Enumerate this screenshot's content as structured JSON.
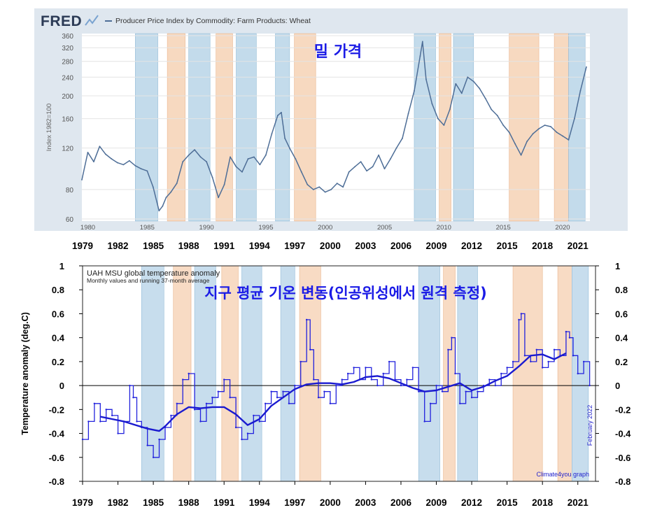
{
  "chart_data": [
    {
      "type": "line",
      "name": "fred-wheat",
      "brand": "FRED",
      "title": "Producer Price Index by Commodity: Farm Products: Wheat",
      "overlay_title": "밀 가격",
      "ylabel": "Index 1982=100",
      "yscale": "log",
      "ylim": [
        60,
        360
      ],
      "xlim": [
        1979.5,
        2022.3
      ],
      "y_ticks": [
        "360",
        "320",
        "280",
        "240",
        "200",
        "160",
        "120",
        "80",
        "60"
      ],
      "x_ticks": [
        "1980",
        "1985",
        "1990",
        "1995",
        "2000",
        "2005",
        "2010",
        "2015",
        "2020"
      ],
      "series": [
        {
          "name": "Wheat PPI",
          "x": [
            1979.5,
            1980.0,
            1980.5,
            1981.0,
            1981.5,
            1982.0,
            1982.5,
            1983.0,
            1983.5,
            1984.0,
            1984.5,
            1985.0,
            1985.5,
            1986.0,
            1986.3,
            1986.6,
            1987.0,
            1987.5,
            1988.0,
            1988.5,
            1989.0,
            1989.5,
            1990.0,
            1990.5,
            1991.0,
            1991.5,
            1992.0,
            1992.5,
            1993.0,
            1993.5,
            1994.0,
            1994.5,
            1995.0,
            1995.5,
            1996.0,
            1996.3,
            1996.6,
            1997.0,
            1997.5,
            1998.0,
            1998.5,
            1999.0,
            1999.5,
            2000.0,
            2000.5,
            2001.0,
            2001.5,
            2002.0,
            2002.5,
            2003.0,
            2003.5,
            2004.0,
            2004.5,
            2005.0,
            2005.5,
            2006.0,
            2006.5,
            2007.0,
            2007.5,
            2008.0,
            2008.2,
            2008.5,
            2009.0,
            2009.5,
            2010.0,
            2010.5,
            2011.0,
            2011.5,
            2012.0,
            2012.5,
            2013.0,
            2013.5,
            2014.0,
            2014.5,
            2015.0,
            2015.5,
            2016.0,
            2016.5,
            2017.0,
            2017.5,
            2018.0,
            2018.5,
            2019.0,
            2019.5,
            2020.0,
            2020.5,
            2021.0,
            2021.5,
            2022.0
          ],
          "values": [
            88,
            115,
            105,
            122,
            113,
            108,
            104,
            102,
            106,
            101,
            98,
            96,
            82,
            65,
            68,
            74,
            78,
            85,
            105,
            112,
            118,
            110,
            105,
            90,
            74,
            84,
            110,
            100,
            95,
            108,
            110,
            102,
            112,
            138,
            165,
            170,
            132,
            120,
            108,
            95,
            84,
            80,
            82,
            78,
            80,
            85,
            82,
            95,
            100,
            105,
            96,
            100,
            112,
            98,
            108,
            120,
            132,
            168,
            210,
            295,
            340,
            235,
            185,
            160,
            150,
            175,
            225,
            205,
            240,
            230,
            215,
            195,
            175,
            165,
            150,
            140,
            125,
            112,
            128,
            138,
            145,
            150,
            148,
            140,
            135,
            130,
            160,
            210,
            265
          ]
        }
      ],
      "shade_ranges": [
        {
          "from": 1984.0,
          "to": 1985.9,
          "kind": "la-nina"
        },
        {
          "from": 1986.7,
          "to": 1988.2,
          "kind": "el-nino"
        },
        {
          "from": 1988.5,
          "to": 1990.3,
          "kind": "la-nina"
        },
        {
          "from": 1990.8,
          "to": 1992.2,
          "kind": "el-nino"
        },
        {
          "from": 1992.5,
          "to": 1994.2,
          "kind": "la-nina"
        },
        {
          "from": 1995.8,
          "to": 1997.0,
          "kind": "la-nina"
        },
        {
          "from": 1997.4,
          "to": 1999.2,
          "kind": "el-nino"
        },
        {
          "from": 2007.5,
          "to": 2009.3,
          "kind": "la-nina"
        },
        {
          "from": 2009.6,
          "to": 2010.6,
          "kind": "el-nino"
        },
        {
          "from": 2010.8,
          "to": 2012.5,
          "kind": "la-nina"
        },
        {
          "from": 2015.5,
          "to": 2018.0,
          "kind": "el-nino"
        },
        {
          "from": 2019.3,
          "to": 2020.5,
          "kind": "el-nino"
        },
        {
          "from": 2020.5,
          "to": 2021.9,
          "kind": "la-nina"
        }
      ]
    },
    {
      "type": "line",
      "name": "uah-temperature",
      "title": "UAH MSU global temperature anomaly",
      "subtitle": "Monthly values and running 37-month average",
      "overlay_title": "지구 평균 기온 변동(인공위성에서 원격 측정)",
      "ylabel": "Temperature anomaly (deg.C)",
      "right_note": "February 2022",
      "credit": "Climate4you graph",
      "ylim": [
        -0.8,
        1.0
      ],
      "xlim": [
        1979.0,
        2022.5
      ],
      "y_ticks": [
        "1",
        "0.8",
        "0.6",
        "0.4",
        "0.2",
        "0",
        "-0.2",
        "-0.4",
        "-0.6",
        "-0.8"
      ],
      "x_ticks": [
        "1979",
        "1982",
        "1985",
        "1988",
        "1991",
        "1994",
        "1997",
        "2000",
        "2003",
        "2006",
        "2009",
        "2012",
        "2015",
        "2018",
        "2021"
      ],
      "series": [
        {
          "name": "Monthly anomaly",
          "x": [
            1979.0,
            1979.5,
            1980.0,
            1980.5,
            1981.0,
            1981.5,
            1982.0,
            1982.5,
            1983.0,
            1983.3,
            1983.6,
            1984.0,
            1984.5,
            1985.0,
            1985.5,
            1986.0,
            1986.5,
            1987.0,
            1987.5,
            1988.0,
            1988.5,
            1989.0,
            1989.5,
            1990.0,
            1990.5,
            1991.0,
            1991.5,
            1992.0,
            1992.5,
            1993.0,
            1993.5,
            1994.0,
            1994.5,
            1995.0,
            1995.5,
            1996.0,
            1996.5,
            1997.0,
            1997.5,
            1998.0,
            1998.3,
            1998.6,
            1999.0,
            1999.5,
            2000.0,
            2000.5,
            2001.0,
            2001.5,
            2002.0,
            2002.5,
            2003.0,
            2003.5,
            2004.0,
            2004.5,
            2005.0,
            2005.5,
            2006.0,
            2006.5,
            2007.0,
            2007.5,
            2008.0,
            2008.5,
            2009.0,
            2009.5,
            2010.0,
            2010.3,
            2010.6,
            2011.0,
            2011.5,
            2012.0,
            2012.5,
            2013.0,
            2013.5,
            2014.0,
            2014.5,
            2015.0,
            2015.5,
            2016.0,
            2016.2,
            2016.5,
            2017.0,
            2017.5,
            2018.0,
            2018.5,
            2019.0,
            2019.5,
            2020.0,
            2020.3,
            2020.6,
            2021.0,
            2021.5,
            2022.0
          ],
          "values": [
            -0.45,
            -0.3,
            -0.15,
            -0.3,
            -0.2,
            -0.25,
            -0.4,
            -0.3,
            0.0,
            -0.1,
            -0.3,
            -0.35,
            -0.5,
            -0.6,
            -0.45,
            -0.35,
            -0.25,
            -0.15,
            0.05,
            0.1,
            -0.2,
            -0.3,
            -0.15,
            -0.1,
            -0.05,
            0.05,
            -0.1,
            -0.35,
            -0.45,
            -0.4,
            -0.25,
            -0.3,
            -0.15,
            -0.05,
            -0.1,
            -0.05,
            -0.15,
            0.0,
            0.2,
            0.55,
            0.3,
            0.05,
            -0.1,
            -0.05,
            -0.15,
            0.0,
            0.05,
            0.1,
            0.15,
            0.05,
            0.15,
            0.05,
            0.0,
            0.1,
            0.2,
            0.05,
            0.0,
            0.05,
            0.15,
            -0.05,
            -0.3,
            -0.15,
            0.0,
            -0.05,
            0.3,
            0.4,
            0.1,
            -0.15,
            -0.05,
            -0.1,
            -0.05,
            0.0,
            0.05,
            0.0,
            0.1,
            0.15,
            0.2,
            0.55,
            0.6,
            0.25,
            0.2,
            0.3,
            0.15,
            0.2,
            0.3,
            0.25,
            0.45,
            0.4,
            0.25,
            0.1,
            0.2,
            0.0
          ]
        },
        {
          "name": "Running 37-month average",
          "x": [
            1980.5,
            1981.5,
            1982.5,
            1983.5,
            1984.5,
            1985.5,
            1986.0,
            1987.0,
            1988.0,
            1989.0,
            1990.0,
            1991.0,
            1992.0,
            1993.0,
            1994.0,
            1995.0,
            1996.0,
            1997.0,
            1998.0,
            1999.0,
            2000.0,
            2001.0,
            2002.0,
            2003.0,
            2004.0,
            2005.0,
            2006.0,
            2007.0,
            2008.0,
            2009.0,
            2010.0,
            2011.0,
            2012.0,
            2013.0,
            2014.0,
            2015.0,
            2016.0,
            2017.0,
            2018.0,
            2019.0,
            2020.0
          ],
          "values": [
            -0.26,
            -0.28,
            -0.3,
            -0.33,
            -0.36,
            -0.38,
            -0.34,
            -0.24,
            -0.18,
            -0.19,
            -0.18,
            -0.18,
            -0.24,
            -0.33,
            -0.28,
            -0.17,
            -0.1,
            -0.03,
            0.01,
            0.02,
            0.02,
            0.01,
            0.03,
            0.07,
            0.08,
            0.06,
            0.02,
            -0.02,
            -0.05,
            -0.04,
            -0.01,
            0.02,
            -0.04,
            -0.01,
            0.04,
            0.08,
            0.16,
            0.25,
            0.26,
            0.22,
            0.27
          ]
        }
      ],
      "shade_ranges": [
        {
          "from": 1984.0,
          "to": 1985.9,
          "kind": "la-nina"
        },
        {
          "from": 1986.7,
          "to": 1988.2,
          "kind": "el-nino"
        },
        {
          "from": 1988.5,
          "to": 1990.3,
          "kind": "la-nina"
        },
        {
          "from": 1990.8,
          "to": 1992.2,
          "kind": "el-nino"
        },
        {
          "from": 1992.5,
          "to": 1994.2,
          "kind": "la-nina"
        },
        {
          "from": 1995.8,
          "to": 1997.0,
          "kind": "la-nina"
        },
        {
          "from": 1997.4,
          "to": 1999.2,
          "kind": "el-nino"
        },
        {
          "from": 2007.5,
          "to": 2009.3,
          "kind": "la-nina"
        },
        {
          "from": 2009.6,
          "to": 2010.6,
          "kind": "el-nino"
        },
        {
          "from": 2010.8,
          "to": 2012.5,
          "kind": "la-nina"
        },
        {
          "from": 2015.5,
          "to": 2018.0,
          "kind": "el-nino"
        },
        {
          "from": 2019.3,
          "to": 2020.5,
          "kind": "el-nino"
        },
        {
          "from": 2020.5,
          "to": 2021.9,
          "kind": "la-nina"
        }
      ]
    }
  ],
  "colors": {
    "fred_frame": "#dfe7ef",
    "fred_line": "#4e6e97",
    "temp_monthly": "#2222dd",
    "temp_average": "#1a1ad0",
    "el_nino": "#f6d2b5",
    "la_nina": "#b9d5e8",
    "overlay_text": "#1b1be6"
  }
}
